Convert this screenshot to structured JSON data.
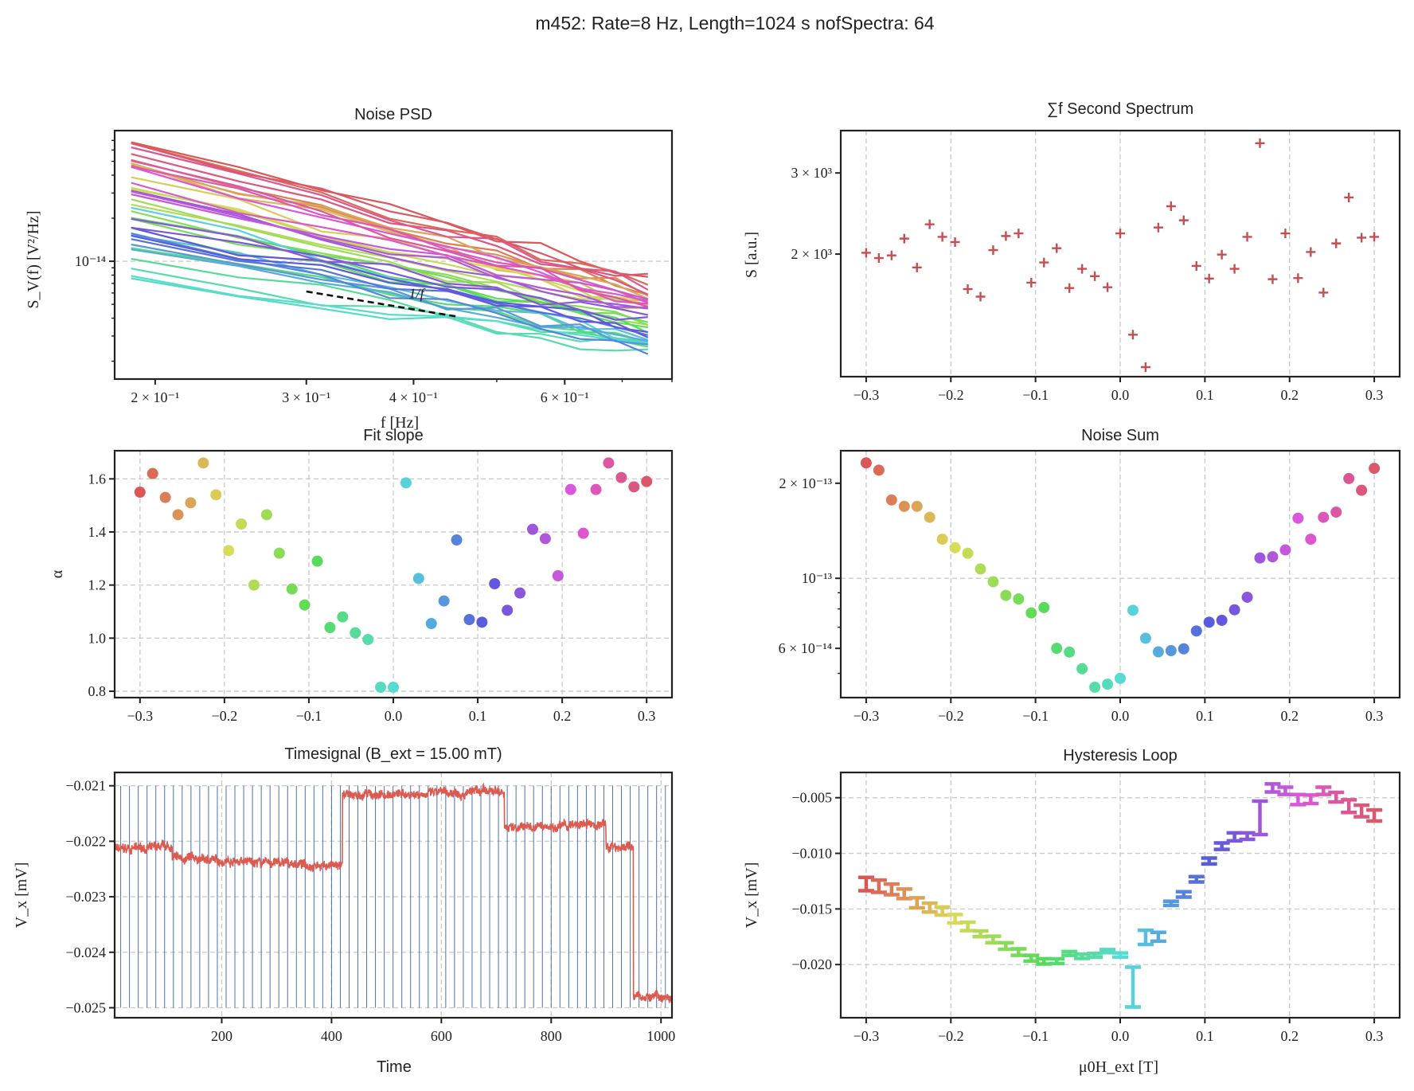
{
  "suptitle": "m452: Rate=8 Hz, Length=1024 s nofSpectra: 64",
  "chart_data": [
    {
      "type": "line",
      "title": "Noise PSD",
      "xlabel": "f [Hz]",
      "ylabel": "S_V(f) [V²/Hz]",
      "xscale": "log",
      "yscale": "log",
      "xlim": [
        0.1794,
        0.8
      ],
      "ylim": [
        1.5e-15,
        8.2e-14
      ],
      "xticks": [
        0.2,
        0.3,
        0.4,
        0.6
      ],
      "xtick_labels": [
        "2 × 10⁻¹",
        "3 × 10⁻¹",
        "4 × 10⁻¹",
        "6 × 10⁻¹"
      ],
      "xminor": [
        0.5,
        0.7,
        0.8
      ],
      "yticks": [
        1e-14
      ],
      "ytick_labels": [
        "10⁻¹⁴"
      ],
      "yminor": [
        2e-15,
        3e-15,
        4e-15,
        5e-15,
        6e-15,
        7e-15,
        8e-15,
        9e-15,
        2e-14,
        3e-14,
        4e-14,
        5e-14,
        6e-14,
        7e-14
      ],
      "grid": "y",
      "frequencies": [
        0.1875,
        0.25,
        0.3125,
        0.375,
        0.4375,
        0.5,
        0.5625,
        0.625,
        0.6875,
        0.75
      ],
      "model": "S(f) = A·(f/0.1875)^(-alpha), one curve per field step (alpha from Fit slope)",
      "amplitude_at_f0_e14": [
        6.8,
        6.7,
        5.12,
        4.7,
        4.84,
        4.86,
        3.87,
        3.19,
        3.27,
        2.49,
        2.71,
        2.24,
        1.98,
        1.71,
        2.01,
        1.23,
        1.24,
        1.04,
        0.89,
        0.76,
        0.79,
        2.37,
        1.53,
        1.21,
        1.31,
        1.57,
        1.43,
        1.51,
        1.72,
        1.72,
        1.98,
        3.12,
        3.08,
        2.94,
        4.57,
        3.54,
        4.6,
        5.05,
        6.26,
        5.63,
        6.68
      ],
      "reference_line": {
        "label": "1/f",
        "f": [
          0.3,
          0.451
        ],
        "S": [
          6.15e-15,
          4.09e-15
        ]
      }
    },
    {
      "type": "scatter",
      "title": "∑f Second Spectrum",
      "xlabel": "",
      "ylabel": "S [a.u.]",
      "yscale": "log",
      "xlim": [
        -0.33,
        0.33
      ],
      "ylim": [
        1084,
        3707
      ],
      "xticks": [
        -0.3,
        -0.2,
        -0.1,
        0.0,
        0.1,
        0.2,
        0.3
      ],
      "xtick_labels": [
        "−0.3",
        "−0.2",
        "−0.1",
        "0.0",
        "0.1",
        "0.2",
        "0.3"
      ],
      "yticks": [
        3000,
        2000
      ],
      "ytick_labels": [
        "3 × 10³",
        "2 × 10³"
      ],
      "grid": "x",
      "marker": "+",
      "color": "#c44e52",
      "x": [
        -0.3,
        -0.285,
        -0.27,
        -0.255,
        -0.24,
        -0.225,
        -0.21,
        -0.195,
        -0.18,
        -0.165,
        -0.15,
        -0.135,
        -0.12,
        -0.105,
        -0.09,
        -0.075,
        -0.06,
        -0.045,
        -0.03,
        -0.015,
        0,
        0.015,
        0.03,
        0.045,
        0.06,
        0.075,
        0.09,
        0.105,
        0.12,
        0.135,
        0.15,
        0.165,
        0.18,
        0.195,
        0.21,
        0.225,
        0.24,
        0.255,
        0.27,
        0.285,
        0.3
      ],
      "y": [
        2013,
        1961,
        1987,
        2161,
        1871,
        2321,
        2180,
        2124,
        1679,
        1617,
        2040,
        2189,
        2218,
        1734,
        1918,
        2060,
        1688,
        1858,
        1791,
        1695,
        2218,
        1337,
        1137,
        2284,
        2540,
        2368,
        1885,
        1770,
        1995,
        1858,
        2180,
        3481,
        1764,
        2218,
        1774,
        2021,
        1650,
        2110,
        2654,
        2171,
        2180
      ]
    },
    {
      "type": "scatter",
      "title": "Fit slope",
      "xlabel": "",
      "ylabel": "α",
      "xlim": [
        -0.33,
        0.33
      ],
      "ylim": [
        0.776,
        1.706
      ],
      "xticks": [
        -0.3,
        -0.2,
        -0.1,
        0.0,
        0.1,
        0.2,
        0.3
      ],
      "xtick_labels": [
        "−0.3",
        "−0.2",
        "−0.1",
        "0.0",
        "0.1",
        "0.2",
        "0.3"
      ],
      "yticks": [
        0.8,
        1.0,
        1.2,
        1.4,
        1.6
      ],
      "ytick_labels": [
        "0.8",
        "1.0",
        "1.2",
        "1.4",
        "1.6"
      ],
      "grid": "both",
      "x": [
        -0.3,
        -0.285,
        -0.27,
        -0.255,
        -0.24,
        -0.225,
        -0.21,
        -0.195,
        -0.18,
        -0.165,
        -0.15,
        -0.135,
        -0.12,
        -0.105,
        -0.09,
        -0.075,
        -0.06,
        -0.045,
        -0.03,
        -0.015,
        0,
        0.015,
        0.03,
        0.045,
        0.06,
        0.075,
        0.09,
        0.105,
        0.12,
        0.135,
        0.15,
        0.165,
        0.18,
        0.195,
        0.21,
        0.225,
        0.24,
        0.255,
        0.27,
        0.285,
        0.3
      ],
      "y": [
        1.55,
        1.62,
        1.53,
        1.465,
        1.51,
        1.66,
        1.54,
        1.33,
        1.43,
        1.2,
        1.465,
        1.32,
        1.185,
        1.125,
        1.29,
        1.04,
        1.08,
        1.02,
        0.995,
        0.815,
        0.815,
        1.585,
        1.225,
        1.055,
        1.14,
        1.37,
        1.07,
        1.06,
        1.205,
        1.105,
        1.17,
        1.41,
        1.375,
        1.235,
        1.56,
        1.395,
        1.56,
        1.66,
        1.605,
        1.57,
        1.59
      ]
    },
    {
      "type": "scatter",
      "title": "Noise Sum",
      "xlabel": "",
      "ylabel": "",
      "yscale": "log",
      "xlim": [
        -0.33,
        0.33
      ],
      "ylim": [
        4.19e-14,
        2.535e-13
      ],
      "xticks": [
        -0.3,
        -0.2,
        -0.1,
        0.0,
        0.1,
        0.2,
        0.3
      ],
      "xtick_labels": [
        "−0.3",
        "−0.2",
        "−0.1",
        "0.0",
        "0.1",
        "0.2",
        "0.3"
      ],
      "yticks": [
        2e-13,
        1e-13,
        6e-14
      ],
      "ytick_labels": [
        "2 × 10⁻¹³",
        "10⁻¹³",
        "6 × 10⁻¹⁴"
      ],
      "yminor": [
        5e-14,
        7e-14,
        8e-14,
        9e-14
      ],
      "ygrid_at": [
        1e-13
      ],
      "grid": "x+major",
      "x": [
        -0.3,
        -0.285,
        -0.27,
        -0.255,
        -0.24,
        -0.225,
        -0.21,
        -0.195,
        -0.18,
        -0.165,
        -0.15,
        -0.135,
        -0.12,
        -0.105,
        -0.09,
        -0.075,
        -0.06,
        -0.045,
        -0.03,
        -0.015,
        0,
        0.015,
        0.03,
        0.045,
        0.06,
        0.075,
        0.09,
        0.105,
        0.12,
        0.135,
        0.15,
        0.165,
        0.18,
        0.195,
        0.21,
        0.225,
        0.24,
        0.255,
        0.27,
        0.285,
        0.3
      ],
      "y_e13": [
        2.32,
        2.2,
        1.77,
        1.69,
        1.69,
        1.56,
        1.33,
        1.25,
        1.2,
        1.07,
        0.975,
        0.883,
        0.86,
        0.777,
        0.808,
        0.6,
        0.584,
        0.517,
        0.452,
        0.462,
        0.482,
        0.792,
        0.646,
        0.585,
        0.59,
        0.598,
        0.681,
        0.726,
        0.736,
        0.795,
        0.871,
        1.16,
        1.17,
        1.23,
        1.55,
        1.33,
        1.56,
        1.62,
        2.07,
        1.9,
        2.23
      ]
    },
    {
      "type": "line",
      "title": "Timesignal (B_ext = 15.00 mT)",
      "xlabel": "Time",
      "ylabel": "V_x [mV]",
      "xlim": [
        5,
        1020
      ],
      "ylim": [
        -0.02518,
        -0.02076
      ],
      "xticks": [
        200,
        400,
        600,
        800,
        1000
      ],
      "xtick_labels": [
        "200",
        "400",
        "600",
        "800",
        "1000"
      ],
      "yticks": [
        -0.021,
        -0.022,
        -0.023,
        -0.024,
        -0.025
      ],
      "ytick_labels": [
        "−0.021",
        "−0.022",
        "−0.023",
        "−0.024",
        "−0.025"
      ],
      "grid": "both",
      "line_color": "#dd5a4f",
      "segment_color": "#4c72b0",
      "segment_length": 16,
      "segment_marks_range": [
        -0.025,
        -0.021
      ],
      "levels": [
        {
          "t0": 0,
          "t1": 110,
          "v0": -0.02215,
          "v1": -0.0221
        },
        {
          "t0": 110,
          "t1": 420,
          "v0": -0.0223,
          "v1": -0.02245
        },
        {
          "t0": 420,
          "t1": 715,
          "v0": -0.02118,
          "v1": -0.0211
        },
        {
          "t0": 715,
          "t1": 900,
          "v0": -0.02175,
          "v1": -0.0217
        },
        {
          "t0": 900,
          "t1": 950,
          "v0": -0.0221,
          "v1": -0.0221
        },
        {
          "t0": 950,
          "t1": 1024,
          "v0": -0.0248,
          "v1": -0.0248
        }
      ]
    },
    {
      "type": "errorbar",
      "title": "Hysteresis Loop",
      "xlabel": "μ0H_ext [T]",
      "ylabel": "V_x [mV]",
      "xlim": [
        -0.33,
        0.33
      ],
      "ylim": [
        -0.02478,
        -0.00273
      ],
      "xticks": [
        -0.3,
        -0.2,
        -0.1,
        0.0,
        0.1,
        0.2,
        0.3
      ],
      "xtick_labels": [
        "−0.3",
        "−0.2",
        "−0.1",
        "0.0",
        "0.1",
        "0.2",
        "0.3"
      ],
      "yticks": [
        -0.005,
        -0.01,
        -0.015,
        -0.02
      ],
      "ytick_labels": [
        "−0.005",
        "−0.010",
        "−0.015",
        "−0.020"
      ],
      "grid": "both",
      "x": [
        -0.3,
        -0.285,
        -0.27,
        -0.255,
        -0.24,
        -0.225,
        -0.21,
        -0.195,
        -0.18,
        -0.165,
        -0.15,
        -0.135,
        -0.12,
        -0.105,
        -0.09,
        -0.075,
        -0.06,
        -0.045,
        -0.03,
        -0.015,
        0,
        0.015,
        0.03,
        0.045,
        0.06,
        0.075,
        0.09,
        0.105,
        0.12,
        0.135,
        0.15,
        0.165,
        0.18,
        0.195,
        0.21,
        0.225,
        0.24,
        0.255,
        0.27,
        0.285,
        0.3
      ],
      "y": [
        -0.01276,
        -0.01295,
        -0.01324,
        -0.01364,
        -0.01445,
        -0.01488,
        -0.01519,
        -0.01588,
        -0.01657,
        -0.01724,
        -0.01774,
        -0.01833,
        -0.01888,
        -0.01943,
        -0.01971,
        -0.01969,
        -0.019,
        -0.01926,
        -0.01917,
        -0.01879,
        -0.01914,
        -0.02202,
        -0.01755,
        -0.0175,
        -0.0145,
        -0.01369,
        -0.01233,
        -0.01069,
        -0.00936,
        -0.00852,
        -0.00845,
        -0.00681,
        -0.00412,
        -0.00438,
        -0.00517,
        -0.00514,
        -0.00438,
        -0.00495,
        -0.00576,
        -0.00619,
        -0.0066
      ],
      "yerr": [
        0.0006,
        0.00055,
        0.00048,
        0.00043,
        0.00045,
        0.0004,
        0.00036,
        0.00038,
        0.00038,
        0.00026,
        0.00029,
        0.00029,
        0.00029,
        0.00026,
        0.00024,
        0.00021,
        0.00017,
        0.00019,
        0.00017,
        0.00014,
        0.00019,
        0.00179,
        0.00064,
        0.0004,
        0.00019,
        0.00024,
        0.00024,
        0.00026,
        0.00029,
        0.00036,
        0.00029,
        0.0015,
        0.00036,
        0.00033,
        0.00045,
        0.00038,
        0.00033,
        0.00043,
        0.00057,
        0.00052,
        0.0005
      ]
    }
  ]
}
